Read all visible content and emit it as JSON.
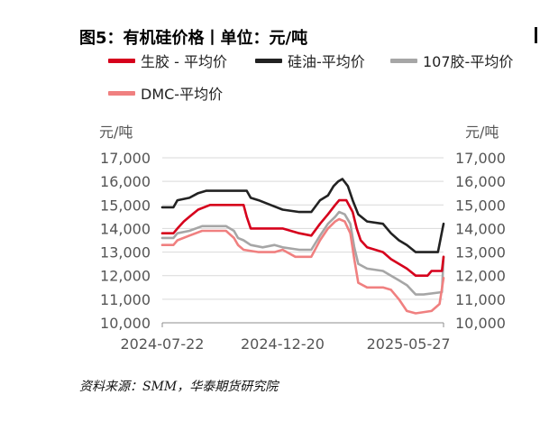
{
  "title": "图5：有机硅价格丨单位：元/吨",
  "source": "资料来源：SMM，华泰期货研究院",
  "chart_data": {
    "type": "line",
    "y_unit_left": "元/吨",
    "y_unit_right": "元/吨",
    "ylim": [
      10000,
      17000
    ],
    "y_ticks": [
      "10,000",
      "11,000",
      "12,000",
      "13,000",
      "14,000",
      "15,000",
      "16,000",
      "17,000"
    ],
    "x_ticks": [
      "2024-07-22",
      "2024-12-20",
      "2025-05-27"
    ],
    "grid": true,
    "legend_position": "top",
    "series": [
      {
        "name": "生胶 - 平均价",
        "color": "#d6001c",
        "points": [
          [
            "2024-07-22",
            13800
          ],
          [
            "2024-08-05",
            13800
          ],
          [
            "2024-08-10",
            14000
          ],
          [
            "2024-08-18",
            14300
          ],
          [
            "2024-08-25",
            14500
          ],
          [
            "2024-09-05",
            14800
          ],
          [
            "2024-09-20",
            15000
          ],
          [
            "2024-10-20",
            15000
          ],
          [
            "2024-11-01",
            15000
          ],
          [
            "2024-11-05",
            14500
          ],
          [
            "2024-11-10",
            14000
          ],
          [
            "2024-11-25",
            14000
          ],
          [
            "2024-12-10",
            14000
          ],
          [
            "2024-12-20",
            14000
          ],
          [
            "2025-01-10",
            13800
          ],
          [
            "2025-01-25",
            13700
          ],
          [
            "2025-02-05",
            14200
          ],
          [
            "2025-02-15",
            14600
          ],
          [
            "2025-02-24",
            15000
          ],
          [
            "2025-03-01",
            15200
          ],
          [
            "2025-03-10",
            15200
          ],
          [
            "2025-03-18",
            14700
          ],
          [
            "2025-03-23",
            14000
          ],
          [
            "2025-03-28",
            13500
          ],
          [
            "2025-04-05",
            13200
          ],
          [
            "2025-04-25",
            13000
          ],
          [
            "2025-05-05",
            12700
          ],
          [
            "2025-05-15",
            12500
          ],
          [
            "2025-05-25",
            12300
          ],
          [
            "2025-06-05",
            12000
          ],
          [
            "2025-06-20",
            12000
          ],
          [
            "2025-06-25",
            12200
          ],
          [
            "2025-07-08",
            12200
          ],
          [
            "2025-07-10",
            12800
          ]
        ]
      },
      {
        "name": "硅油-平均价",
        "color": "#222222",
        "points": [
          [
            "2024-07-22",
            14900
          ],
          [
            "2024-08-05",
            14900
          ],
          [
            "2024-08-10",
            15200
          ],
          [
            "2024-08-25",
            15300
          ],
          [
            "2024-09-05",
            15500
          ],
          [
            "2024-09-15",
            15600
          ],
          [
            "2024-10-10",
            15600
          ],
          [
            "2024-11-05",
            15600
          ],
          [
            "2024-11-10",
            15300
          ],
          [
            "2024-11-20",
            15200
          ],
          [
            "2024-12-05",
            15000
          ],
          [
            "2024-12-20",
            14800
          ],
          [
            "2025-01-10",
            14700
          ],
          [
            "2025-01-25",
            14700
          ],
          [
            "2025-02-05",
            15200
          ],
          [
            "2025-02-15",
            15400
          ],
          [
            "2025-02-22",
            15800
          ],
          [
            "2025-02-28",
            16000
          ],
          [
            "2025-03-05",
            16100
          ],
          [
            "2025-03-12",
            15800
          ],
          [
            "2025-03-18",
            15200
          ],
          [
            "2025-03-25",
            14600
          ],
          [
            "2025-04-05",
            14300
          ],
          [
            "2025-04-25",
            14200
          ],
          [
            "2025-05-05",
            13800
          ],
          [
            "2025-05-15",
            13500
          ],
          [
            "2025-05-25",
            13300
          ],
          [
            "2025-06-05",
            13000
          ],
          [
            "2025-06-20",
            13000
          ],
          [
            "2025-07-03",
            13000
          ],
          [
            "2025-07-10",
            14200
          ]
        ]
      },
      {
        "name": "107胶-平均价",
        "color": "#a6a6a6",
        "points": [
          [
            "2024-07-22",
            13600
          ],
          [
            "2024-08-05",
            13600
          ],
          [
            "2024-08-10",
            13800
          ],
          [
            "2024-08-25",
            13900
          ],
          [
            "2024-09-10",
            14100
          ],
          [
            "2024-10-10",
            14100
          ],
          [
            "2024-10-20",
            13900
          ],
          [
            "2024-10-25",
            13600
          ],
          [
            "2024-11-01",
            13500
          ],
          [
            "2024-11-10",
            13300
          ],
          [
            "2024-11-25",
            13200
          ],
          [
            "2024-12-10",
            13300
          ],
          [
            "2024-12-20",
            13200
          ],
          [
            "2025-01-10",
            13100
          ],
          [
            "2025-01-25",
            13100
          ],
          [
            "2025-02-05",
            13700
          ],
          [
            "2025-02-15",
            14200
          ],
          [
            "2025-02-24",
            14500
          ],
          [
            "2025-03-01",
            14700
          ],
          [
            "2025-03-08",
            14600
          ],
          [
            "2025-03-15",
            14200
          ],
          [
            "2025-03-20",
            13200
          ],
          [
            "2025-03-25",
            12500
          ],
          [
            "2025-04-05",
            12300
          ],
          [
            "2025-04-25",
            12200
          ],
          [
            "2025-05-05",
            12000
          ],
          [
            "2025-05-15",
            11800
          ],
          [
            "2025-05-25",
            11600
          ],
          [
            "2025-06-05",
            11200
          ],
          [
            "2025-06-15",
            11200
          ],
          [
            "2025-07-08",
            11300
          ],
          [
            "2025-07-10",
            12800
          ]
        ]
      },
      {
        "name": "DMC-平均价",
        "color": "#f08080",
        "points": [
          [
            "2024-07-22",
            13300
          ],
          [
            "2024-08-05",
            13300
          ],
          [
            "2024-08-10",
            13500
          ],
          [
            "2024-08-25",
            13700
          ],
          [
            "2024-09-10",
            13900
          ],
          [
            "2024-10-10",
            13900
          ],
          [
            "2024-10-20",
            13600
          ],
          [
            "2024-10-25",
            13300
          ],
          [
            "2024-11-01",
            13100
          ],
          [
            "2024-11-20",
            13000
          ],
          [
            "2024-12-10",
            13000
          ],
          [
            "2024-12-20",
            13100
          ],
          [
            "2025-01-05",
            12800
          ],
          [
            "2025-01-25",
            12800
          ],
          [
            "2025-02-05",
            13500
          ],
          [
            "2025-02-15",
            14000
          ],
          [
            "2025-02-24",
            14300
          ],
          [
            "2025-03-01",
            14400
          ],
          [
            "2025-03-08",
            14300
          ],
          [
            "2025-03-15",
            13800
          ],
          [
            "2025-03-20",
            12700
          ],
          [
            "2025-03-25",
            11700
          ],
          [
            "2025-04-05",
            11500
          ],
          [
            "2025-04-25",
            11500
          ],
          [
            "2025-05-05",
            11400
          ],
          [
            "2025-05-15",
            11000
          ],
          [
            "2025-05-25",
            10500
          ],
          [
            "2025-06-05",
            10400
          ],
          [
            "2025-06-25",
            10500
          ],
          [
            "2025-07-05",
            10800
          ],
          [
            "2025-07-10",
            11900
          ]
        ]
      }
    ]
  }
}
